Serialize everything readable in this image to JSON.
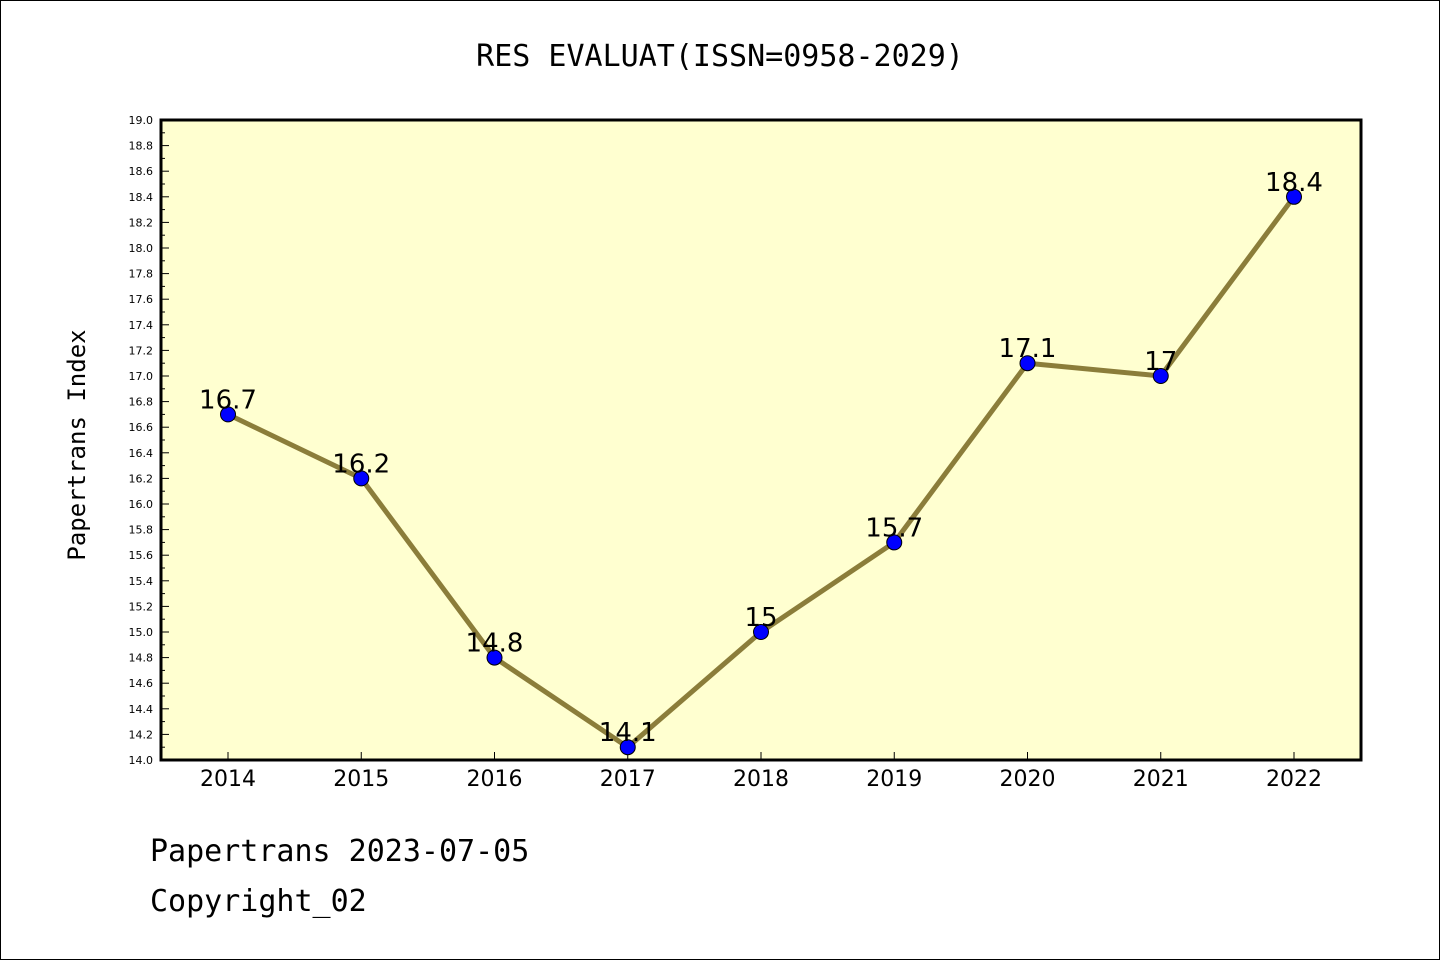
{
  "chart_data": {
    "type": "line",
    "title": "RES EVALUAT(ISSN=0958-2029)",
    "xlabel": "",
    "ylabel": "Papertrans Index",
    "x": [
      "2014",
      "2015",
      "2016",
      "2017",
      "2018",
      "2019",
      "2020",
      "2021",
      "2022"
    ],
    "series": [
      {
        "values": [
          16.7,
          16.2,
          14.8,
          14.1,
          15.0,
          15.7,
          17.1,
          17.0,
          18.4
        ],
        "point_labels": [
          "16.7",
          "16.2",
          "14.8",
          "14.1",
          "15",
          "15.7",
          "17.1",
          "17",
          "18.4"
        ],
        "line_color": "#8b7d3a",
        "marker_color": "#0000ff"
      }
    ],
    "ylim": [
      14.0,
      19.0
    ],
    "yticks": [
      "14.0",
      "14.2",
      "14.4",
      "14.6",
      "14.8",
      "15.0",
      "15.2",
      "15.4",
      "15.6",
      "15.8",
      "16.0",
      "16.2",
      "16.4",
      "16.6",
      "16.8",
      "17.0",
      "17.2",
      "17.4",
      "17.6",
      "17.8",
      "18.0",
      "18.2",
      "18.4",
      "18.6",
      "18.8",
      "19.0"
    ],
    "plot_background": "#ffffd0",
    "grid": false,
    "legend": "none"
  },
  "footer": {
    "line1": "Papertrans 2023-07-05",
    "line2": "Copyright_02"
  }
}
